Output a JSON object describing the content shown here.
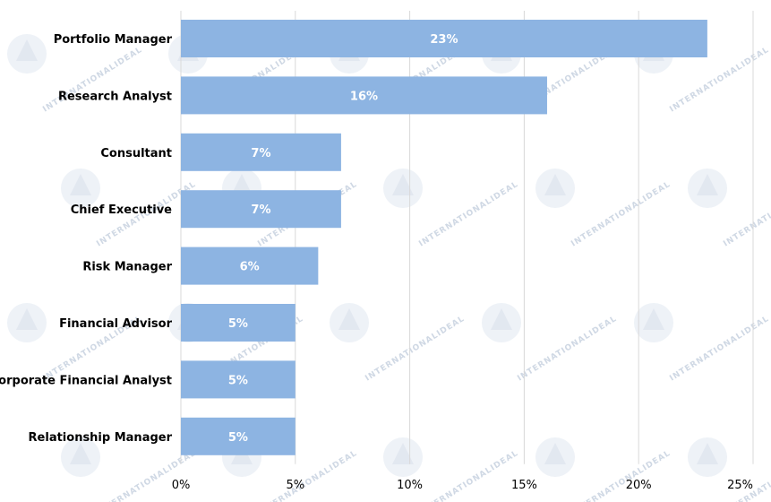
{
  "chart_data": {
    "type": "bar",
    "orientation": "horizontal",
    "categories": [
      "Portfolio Manager",
      "Research Analyst",
      "Consultant",
      "Chief Executive",
      "Risk Manager",
      "Financial Advisor",
      "Corporate Financial Analyst",
      "Relationship Manager"
    ],
    "values": [
      23,
      16,
      7,
      7,
      6,
      5,
      5,
      5
    ],
    "value_labels": [
      "23%",
      "16%",
      "7%",
      "7%",
      "6%",
      "5%",
      "5%",
      "5%"
    ],
    "xlim": [
      0,
      25
    ],
    "x_ticks": [
      0,
      5,
      10,
      15,
      20,
      25
    ],
    "x_tick_labels": [
      "0%",
      "5%",
      "10%",
      "15%",
      "20%",
      "25%"
    ],
    "title": "",
    "xlabel": "",
    "ylabel": "",
    "grid": "vertical",
    "legend": "none",
    "bar_color": "#8db4e2",
    "grid_color": "#d9d9d9",
    "watermark_text": "INTERNATIONALIDEAL"
  }
}
